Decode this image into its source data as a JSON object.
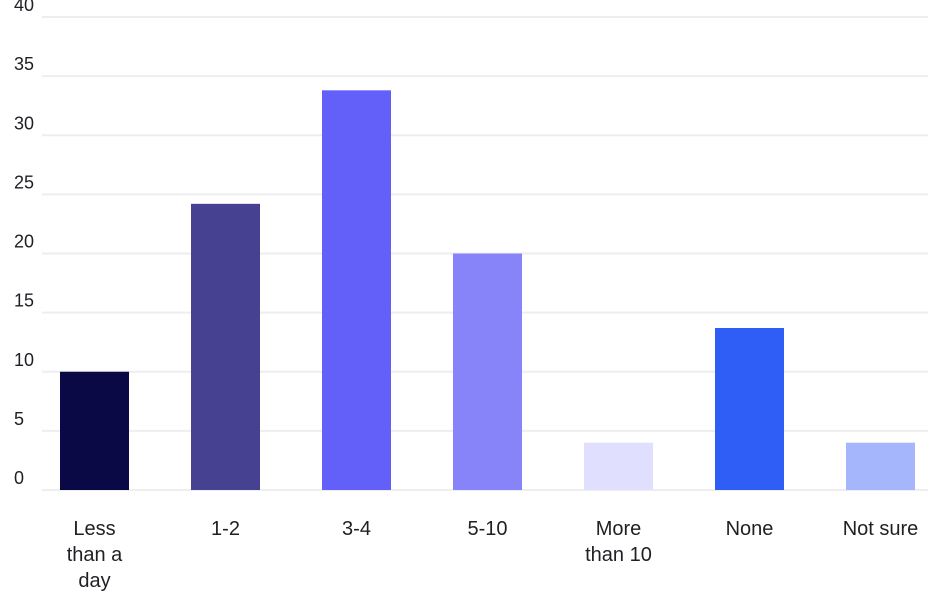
{
  "chart_data": {
    "type": "bar",
    "title": "",
    "xlabel": "",
    "ylabel": "",
    "categories": [
      [
        "Less",
        "than a",
        "day"
      ],
      [
        "1-2"
      ],
      [
        "3-4"
      ],
      [
        "5-10"
      ],
      [
        "More",
        "than 10"
      ],
      [
        "None"
      ],
      [
        "Not sure"
      ]
    ],
    "values": [
      10,
      24.2,
      33.8,
      20,
      4,
      13.7,
      4
    ],
    "colors": [
      "#0b0846",
      "#464190",
      "#6360fa",
      "#8784fa",
      "#e0dffd",
      "#2f5ef6",
      "#a6b6fd"
    ],
    "ylim": [
      0,
      40
    ],
    "yticks": [
      0,
      5,
      10,
      15,
      20,
      25,
      30,
      35,
      40
    ],
    "grid": true,
    "legend": "none"
  }
}
